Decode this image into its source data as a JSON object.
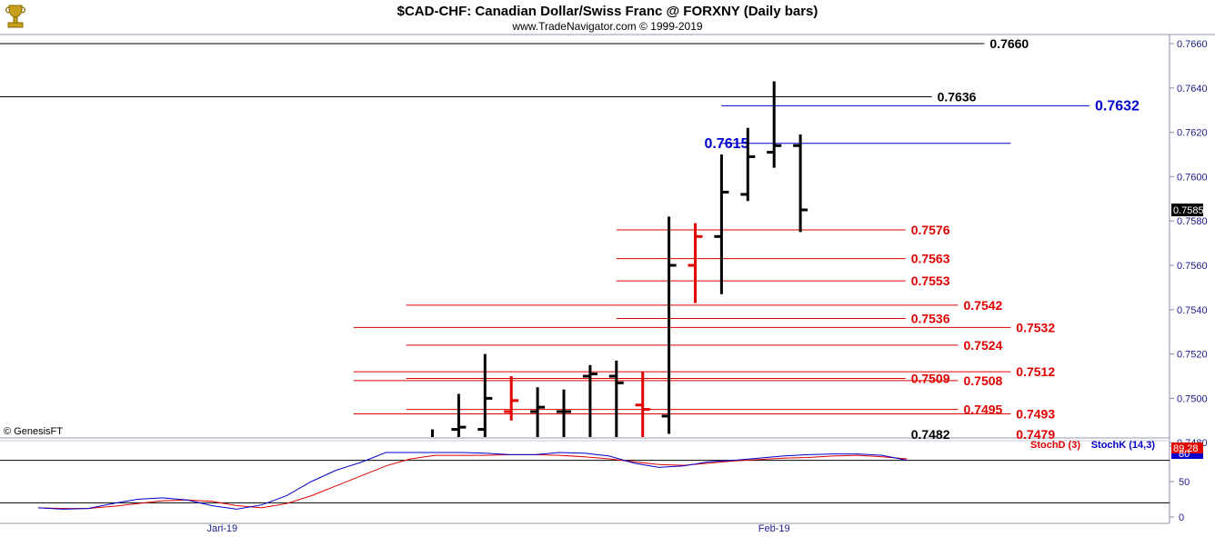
{
  "header": {
    "title": "$CAD-CHF:  Canadian Dollar/Swiss Franc @ FORXNY  (Daily bars)",
    "subtitle": "www.TradeNavigator.com © 1999-2019",
    "logo_icon": "trophy-icon"
  },
  "watermark": "© GenesisFT",
  "colors": {
    "bar_black": "#000000",
    "bar_red": "#e00000",
    "level_red": "#e00000",
    "level_black": "#000000",
    "level_blue": "#0000cc",
    "stoch_d": "#e00000",
    "stoch_k": "#0000cc",
    "axis_text": "#1a1a8c",
    "price_tag_bg": "#000000",
    "stoch_tag_bg": "#e00000"
  },
  "chart_data": [
    {
      "type": "ohlc",
      "title": "$CAD-CHF:  Canadian Dollar/Swiss Franc @ FORXNY  (Daily bars)",
      "ylim": [
        0.7479,
        0.7666
      ],
      "y_ticks": [
        "0.7660",
        "0.7640",
        "0.7620",
        "0.7600",
        "0.7580",
        "0.7560",
        "0.7540",
        "0.7520",
        "0.7500",
        "0.7480"
      ],
      "y_tick_values": [
        0.766,
        0.764,
        0.762,
        0.76,
        0.758,
        0.756,
        0.754,
        0.752,
        0.75,
        0.748
      ],
      "last_price": "0.7585",
      "last_price_value": 0.7585,
      "x_labels": [
        {
          "label": "Jan-19",
          "bar_index": 7
        },
        {
          "label": "Feb-19",
          "bar_index": 28
        }
      ],
      "bars": [
        {
          "i": 0,
          "open": null,
          "high": null,
          "low": null,
          "close": null,
          "color": "black"
        },
        {
          "i": 1,
          "open": null,
          "high": null,
          "low": null,
          "close": null,
          "color": "black"
        },
        {
          "i": 2,
          "open": null,
          "high": null,
          "low": null,
          "close": null,
          "color": "black"
        },
        {
          "i": 3,
          "open": null,
          "high": null,
          "low": null,
          "close": null,
          "color": "black"
        },
        {
          "i": 4,
          "open": null,
          "high": null,
          "low": null,
          "close": null,
          "color": "black"
        },
        {
          "i": 5,
          "open": null,
          "high": null,
          "low": null,
          "close": null,
          "color": "black"
        },
        {
          "i": 6,
          "open": null,
          "high": null,
          "low": null,
          "close": null,
          "color": "black"
        },
        {
          "i": 7,
          "open": null,
          "high": null,
          "low": null,
          "close": null,
          "color": "black"
        },
        {
          "i": 8,
          "open": null,
          "high": null,
          "low": null,
          "close": null,
          "color": "black"
        },
        {
          "i": 9,
          "open": null,
          "high": null,
          "low": null,
          "close": null,
          "color": "black"
        },
        {
          "i": 10,
          "open": null,
          "high": null,
          "low": null,
          "close": null,
          "color": "black"
        },
        {
          "i": 11,
          "open": null,
          "high": null,
          "low": null,
          "close": null,
          "color": "black"
        },
        {
          "i": 12,
          "open": null,
          "high": null,
          "low": null,
          "close": null,
          "color": "black"
        },
        {
          "i": 13,
          "open": null,
          "high": null,
          "low": null,
          "close": null,
          "color": "black"
        },
        {
          "i": 14,
          "open": null,
          "high": null,
          "low": null,
          "close": null,
          "color": "black"
        },
        {
          "i": 15,
          "open": 0.7478,
          "high": 0.7486,
          "low": 0.747,
          "close": 0.7481,
          "color": "black"
        },
        {
          "i": 16,
          "open": 0.7486,
          "high": 0.7502,
          "low": 0.7479,
          "close": 0.7487,
          "color": "black"
        },
        {
          "i": 17,
          "open": 0.7486,
          "high": 0.752,
          "low": 0.7478,
          "close": 0.75,
          "color": "black"
        },
        {
          "i": 18,
          "open": 0.7494,
          "high": 0.751,
          "low": 0.749,
          "close": 0.7499,
          "color": "red"
        },
        {
          "i": 19,
          "open": 0.7494,
          "high": 0.7505,
          "low": 0.7478,
          "close": 0.7496,
          "color": "black"
        },
        {
          "i": 20,
          "open": 0.7494,
          "high": 0.7504,
          "low": 0.7478,
          "close": 0.7494,
          "color": "black"
        },
        {
          "i": 21,
          "open": 0.751,
          "high": 0.7515,
          "low": 0.7478,
          "close": 0.7511,
          "color": "black"
        },
        {
          "i": 22,
          "open": 0.751,
          "high": 0.7517,
          "low": 0.7478,
          "close": 0.7507,
          "color": "black"
        },
        {
          "i": 23,
          "open": 0.7497,
          "high": 0.7512,
          "low": 0.7479,
          "close": 0.7495,
          "color": "red"
        },
        {
          "i": 24,
          "open": 0.7492,
          "high": 0.7582,
          "low": 0.7484,
          "close": 0.756,
          "color": "black"
        },
        {
          "i": 25,
          "open": 0.756,
          "high": 0.7579,
          "low": 0.7543,
          "close": 0.7573,
          "color": "red"
        },
        {
          "i": 26,
          "open": 0.7573,
          "high": 0.761,
          "low": 0.7547,
          "close": 0.7593,
          "color": "black"
        },
        {
          "i": 27,
          "open": 0.7592,
          "high": 0.7622,
          "low": 0.7589,
          "close": 0.7609,
          "color": "black"
        },
        {
          "i": 28,
          "open": 0.7611,
          "high": 0.7643,
          "low": 0.7604,
          "close": 0.7614,
          "color": "black"
        },
        {
          "i": 29,
          "open": 0.7614,
          "high": 0.7619,
          "low": 0.7575,
          "close": 0.7585,
          "color": "black"
        }
      ],
      "levels": [
        {
          "value": 0.766,
          "label": "0.7660",
          "color": "black",
          "from": 0,
          "to": 36
        },
        {
          "value": 0.7636,
          "label": "0.7636",
          "color": "black",
          "from": 0,
          "to": 34
        },
        {
          "value": 0.7632,
          "label": "0.7632",
          "color": "blue",
          "from": 26,
          "to": 40
        },
        {
          "value": 0.7615,
          "label": "0.7615",
          "color": "blue",
          "from": 26,
          "to": 37,
          "label_left": true
        },
        {
          "value": 0.7576,
          "label": "0.7576",
          "color": "red",
          "from": 22,
          "to": 33
        },
        {
          "value": 0.7563,
          "label": "0.7563",
          "color": "red",
          "from": 22,
          "to": 33
        },
        {
          "value": 0.7553,
          "label": "0.7553",
          "color": "red",
          "from": 22,
          "to": 33
        },
        {
          "value": 0.7542,
          "label": "0.7542",
          "color": "red",
          "from": 14,
          "to": 35
        },
        {
          "value": 0.7536,
          "label": "0.7536",
          "color": "red",
          "from": 22,
          "to": 33
        },
        {
          "value": 0.7532,
          "label": "0.7532",
          "color": "red",
          "from": 12,
          "to": 37
        },
        {
          "value": 0.7524,
          "label": "0.7524",
          "color": "red",
          "from": 14,
          "to": 35
        },
        {
          "value": 0.7512,
          "label": "0.7512",
          "color": "red",
          "from": 12,
          "to": 37
        },
        {
          "value": 0.7509,
          "label": "0.7509",
          "color": "red",
          "from": 14,
          "to": 33
        },
        {
          "value": 0.7508,
          "label": "0.7508",
          "color": "red",
          "from": 12,
          "to": 35
        },
        {
          "value": 0.7495,
          "label": "0.7495",
          "color": "red",
          "from": 14,
          "to": 35
        },
        {
          "value": 0.7493,
          "label": "0.7493",
          "color": "red",
          "from": 12,
          "to": 37
        },
        {
          "value": 0.7482,
          "label": "0.7482",
          "color": "black",
          "from": 22,
          "to": 33
        },
        {
          "value": 0.7479,
          "label": "0.7479",
          "color": "red",
          "from": 22,
          "to": 37
        }
      ]
    },
    {
      "type": "line",
      "title": "",
      "ylim": [
        0,
        100
      ],
      "y_ticks": [
        "100",
        "50",
        "0"
      ],
      "y_tick_values": [
        100,
        50,
        0
      ],
      "reference_lines": [
        80,
        20
      ],
      "last_value_label": "89.28",
      "last_value_alt": "80",
      "series": [
        {
          "name": "StochD (3)",
          "color": "red",
          "values": [
            13,
            12,
            12,
            15,
            19,
            23,
            24,
            22,
            16,
            13,
            19,
            30,
            44,
            58,
            72,
            82,
            87,
            87,
            87,
            88,
            88,
            87,
            85,
            82,
            78,
            74,
            73,
            76,
            79,
            81,
            83,
            84,
            86,
            87,
            85,
            82
          ]
        },
        {
          "name": "StochK (14,3)",
          "color": "blue",
          "values": [
            13,
            11,
            12,
            19,
            25,
            27,
            24,
            16,
            11,
            17,
            30,
            50,
            66,
            77,
            91,
            91,
            91,
            91,
            90,
            88,
            88,
            91,
            90,
            86,
            76,
            70,
            72,
            78,
            80,
            83,
            86,
            88,
            89,
            89,
            87,
            80
          ]
        }
      ]
    }
  ]
}
